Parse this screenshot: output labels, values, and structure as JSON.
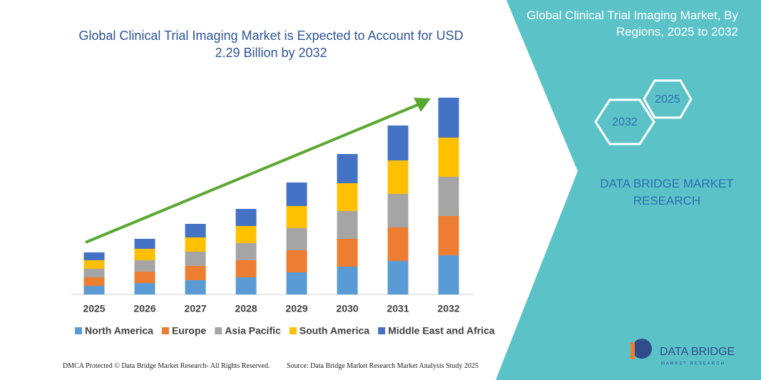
{
  "chart_data": {
    "type": "stacked-bar",
    "title": "Global Clinical Trial Imaging Market is Expected to Account for USD 2.29 Billion by 2032",
    "categories": [
      "2025",
      "2026",
      "2027",
      "2028",
      "2029",
      "2030",
      "2031",
      "2032"
    ],
    "series": [
      {
        "name": "North America",
        "color": "#5b9bd5",
        "values": [
          12,
          16,
          20,
          24,
          31,
          39,
          47,
          55
        ]
      },
      {
        "name": "Europe",
        "color": "#ed7d31",
        "values": [
          12,
          16,
          20,
          24,
          31,
          39,
          47,
          55
        ]
      },
      {
        "name": "Asia Pacific",
        "color": "#a5a5a5",
        "values": [
          12,
          16,
          20,
          24,
          31,
          39,
          47,
          55
        ]
      },
      {
        "name": "South America",
        "color": "#ffc000",
        "values": [
          12,
          16,
          20,
          24,
          31,
          39,
          47,
          55
        ]
      },
      {
        "name": "Middle East and Africa",
        "color": "#4472c4",
        "values": [
          11,
          14,
          19,
          24,
          33,
          41,
          49,
          56
        ]
      }
    ],
    "ylim": [
      0,
      300
    ]
  },
  "panel": {
    "title": "Global Clinical Trial Imaging Market, By Regions, 2025 to 2032",
    "hex_labels": [
      "2025",
      "2032"
    ],
    "brand": "DATA BRIDGE MARKET RESEARCH"
  },
  "logo": {
    "name": "DATA BRIDGE",
    "tagline": "MARKET RESEARCH"
  },
  "footer": {
    "left": "DMCA Protected © Data Bridge Market Research- All Rights Reserved.",
    "right": "Source: Data Bridge Market Research Market Analysis Study 2025"
  }
}
